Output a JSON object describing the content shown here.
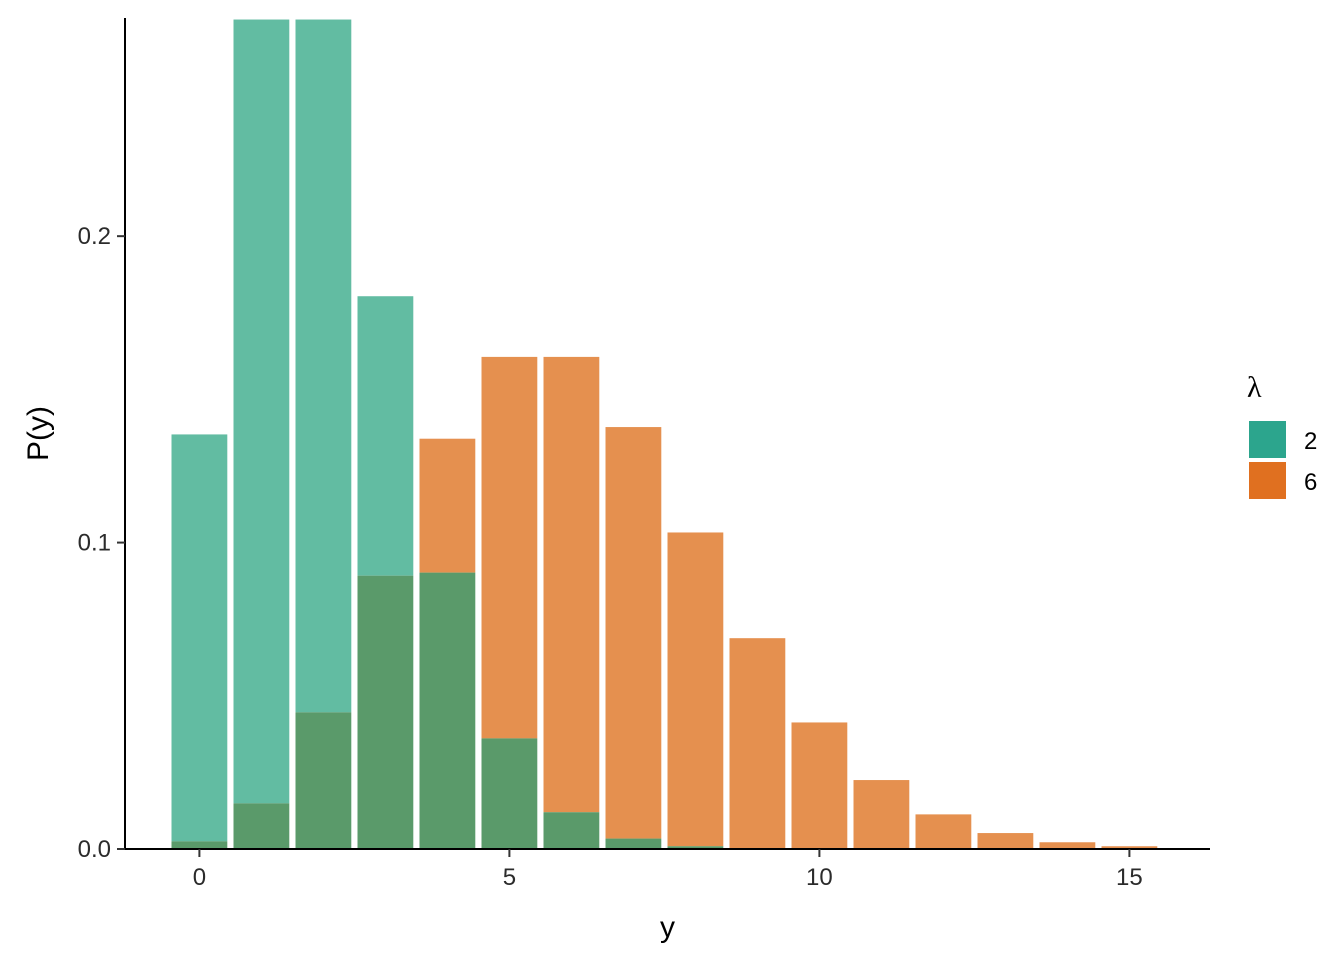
{
  "chart_data": {
    "type": "bar",
    "xlabel": "y",
    "ylabel": "P(y)",
    "xlim": [
      -1.2,
      16.3
    ],
    "ylim": [
      0,
      0.2712
    ],
    "x_ticks": [
      0,
      5,
      10,
      15
    ],
    "y_ticks": [
      0.0,
      0.1,
      0.2
    ],
    "y_tick_labels": [
      "0.0",
      "0.1",
      "0.2"
    ],
    "x_tick_labels": [
      "0",
      "5",
      "10",
      "15"
    ],
    "grid": false,
    "legend": {
      "title": "λ",
      "position": "right",
      "entries": [
        {
          "label": "2",
          "color": "#2ca58d"
        },
        {
          "label": "6",
          "color": "#e07020"
        }
      ]
    },
    "overlap_color": "#5a9a6a",
    "series": [
      {
        "name": "2",
        "color": "#2ca58d",
        "display_color": "#62bca2",
        "x": [
          0,
          1,
          2,
          3,
          4,
          5,
          6,
          7,
          8,
          9,
          10,
          11,
          12,
          13,
          14,
          15
        ],
        "values": [
          0.1353,
          0.2707,
          0.2707,
          0.1804,
          0.0902,
          0.0361,
          0.012,
          0.0034,
          0.0009,
          0.0002,
          0.0,
          0.0,
          0.0,
          0.0,
          0.0,
          0.0
        ]
      },
      {
        "name": "6",
        "color": "#e07020",
        "display_color": "#e5904f",
        "x": [
          0,
          1,
          2,
          3,
          4,
          5,
          6,
          7,
          8,
          9,
          10,
          11,
          12,
          13,
          14,
          15
        ],
        "values": [
          0.0025,
          0.0149,
          0.0446,
          0.0892,
          0.1339,
          0.1606,
          0.1606,
          0.1377,
          0.1033,
          0.0688,
          0.0413,
          0.0225,
          0.0113,
          0.0052,
          0.0022,
          0.0009
        ]
      }
    ]
  }
}
